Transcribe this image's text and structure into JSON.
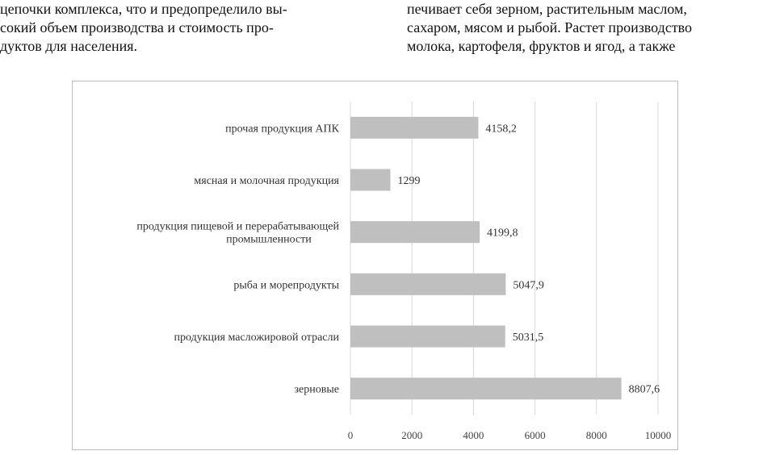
{
  "text": {
    "left_lines": [
      "цепочки комплекса, что и предопределило вы-",
      "сокий объем производства и стоимость про-",
      "дуктов для населения."
    ],
    "right_lines": [
      "печивает себя зерном, растительным маслом,",
      "сахаром, мясом и рыбой. Растет производство",
      "молока, картофеля, фруктов и ягод, а также"
    ]
  },
  "chart_data": {
    "type": "bar",
    "orientation": "horizontal",
    "categories": [
      [
        "прочая продукция АПК"
      ],
      [
        "мясная и молочная продукция"
      ],
      [
        "продукция пищевой и перерабатывающей",
        "промышленности"
      ],
      [
        "рыба и морепродукты"
      ],
      [
        "продукция масложировой отрасли"
      ],
      [
        "зерновые"
      ]
    ],
    "values": [
      4158.2,
      1299,
      4199.8,
      5047.9,
      5031.5,
      8807.6
    ],
    "value_labels": [
      "4158,2",
      "1299",
      "4199,8",
      "5047,9",
      "5031,5",
      "8807,6"
    ],
    "xlim": [
      0,
      10000
    ],
    "xticks": [
      "0",
      "2000",
      "4000",
      "6000",
      "8000",
      "10000"
    ],
    "bar_color": "#bfbfbf",
    "grid": true
  }
}
